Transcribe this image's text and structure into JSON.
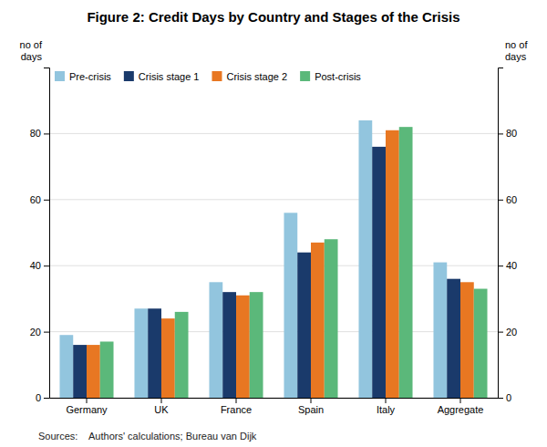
{
  "chart_data": {
    "type": "bar",
    "title": "Figure 2: Credit Days by Country and Stages of the Crisis",
    "categories": [
      "Germany",
      "UK",
      "France",
      "Spain",
      "Italy",
      "Aggregate"
    ],
    "series": [
      {
        "name": "Pre-crisis",
        "color": "#92C5DE",
        "values": [
          19,
          27,
          35,
          56,
          84,
          41
        ]
      },
      {
        "name": "Crisis stage 1",
        "color": "#1A3A6B",
        "values": [
          16,
          27,
          32,
          44,
          76,
          36
        ]
      },
      {
        "name": "Crisis stage 2",
        "color": "#E87722",
        "values": [
          16,
          24,
          31,
          47,
          81,
          35
        ]
      },
      {
        "name": "Post-crisis",
        "color": "#5BB87A",
        "values": [
          17,
          26,
          32,
          48,
          82,
          33
        ]
      }
    ],
    "ylabel": "no of\ndays",
    "y2label": "no of\ndays",
    "ylim": [
      0,
      100
    ],
    "yticks": [
      0,
      20,
      40,
      60,
      80
    ],
    "y2lim": [
      0,
      100
    ],
    "y2ticks": [
      0,
      20,
      40,
      60,
      80
    ],
    "grid": true,
    "legend": "upper left",
    "annotations": [
      "Sources:    Authors' calculations; Bureau van Dijk"
    ]
  }
}
